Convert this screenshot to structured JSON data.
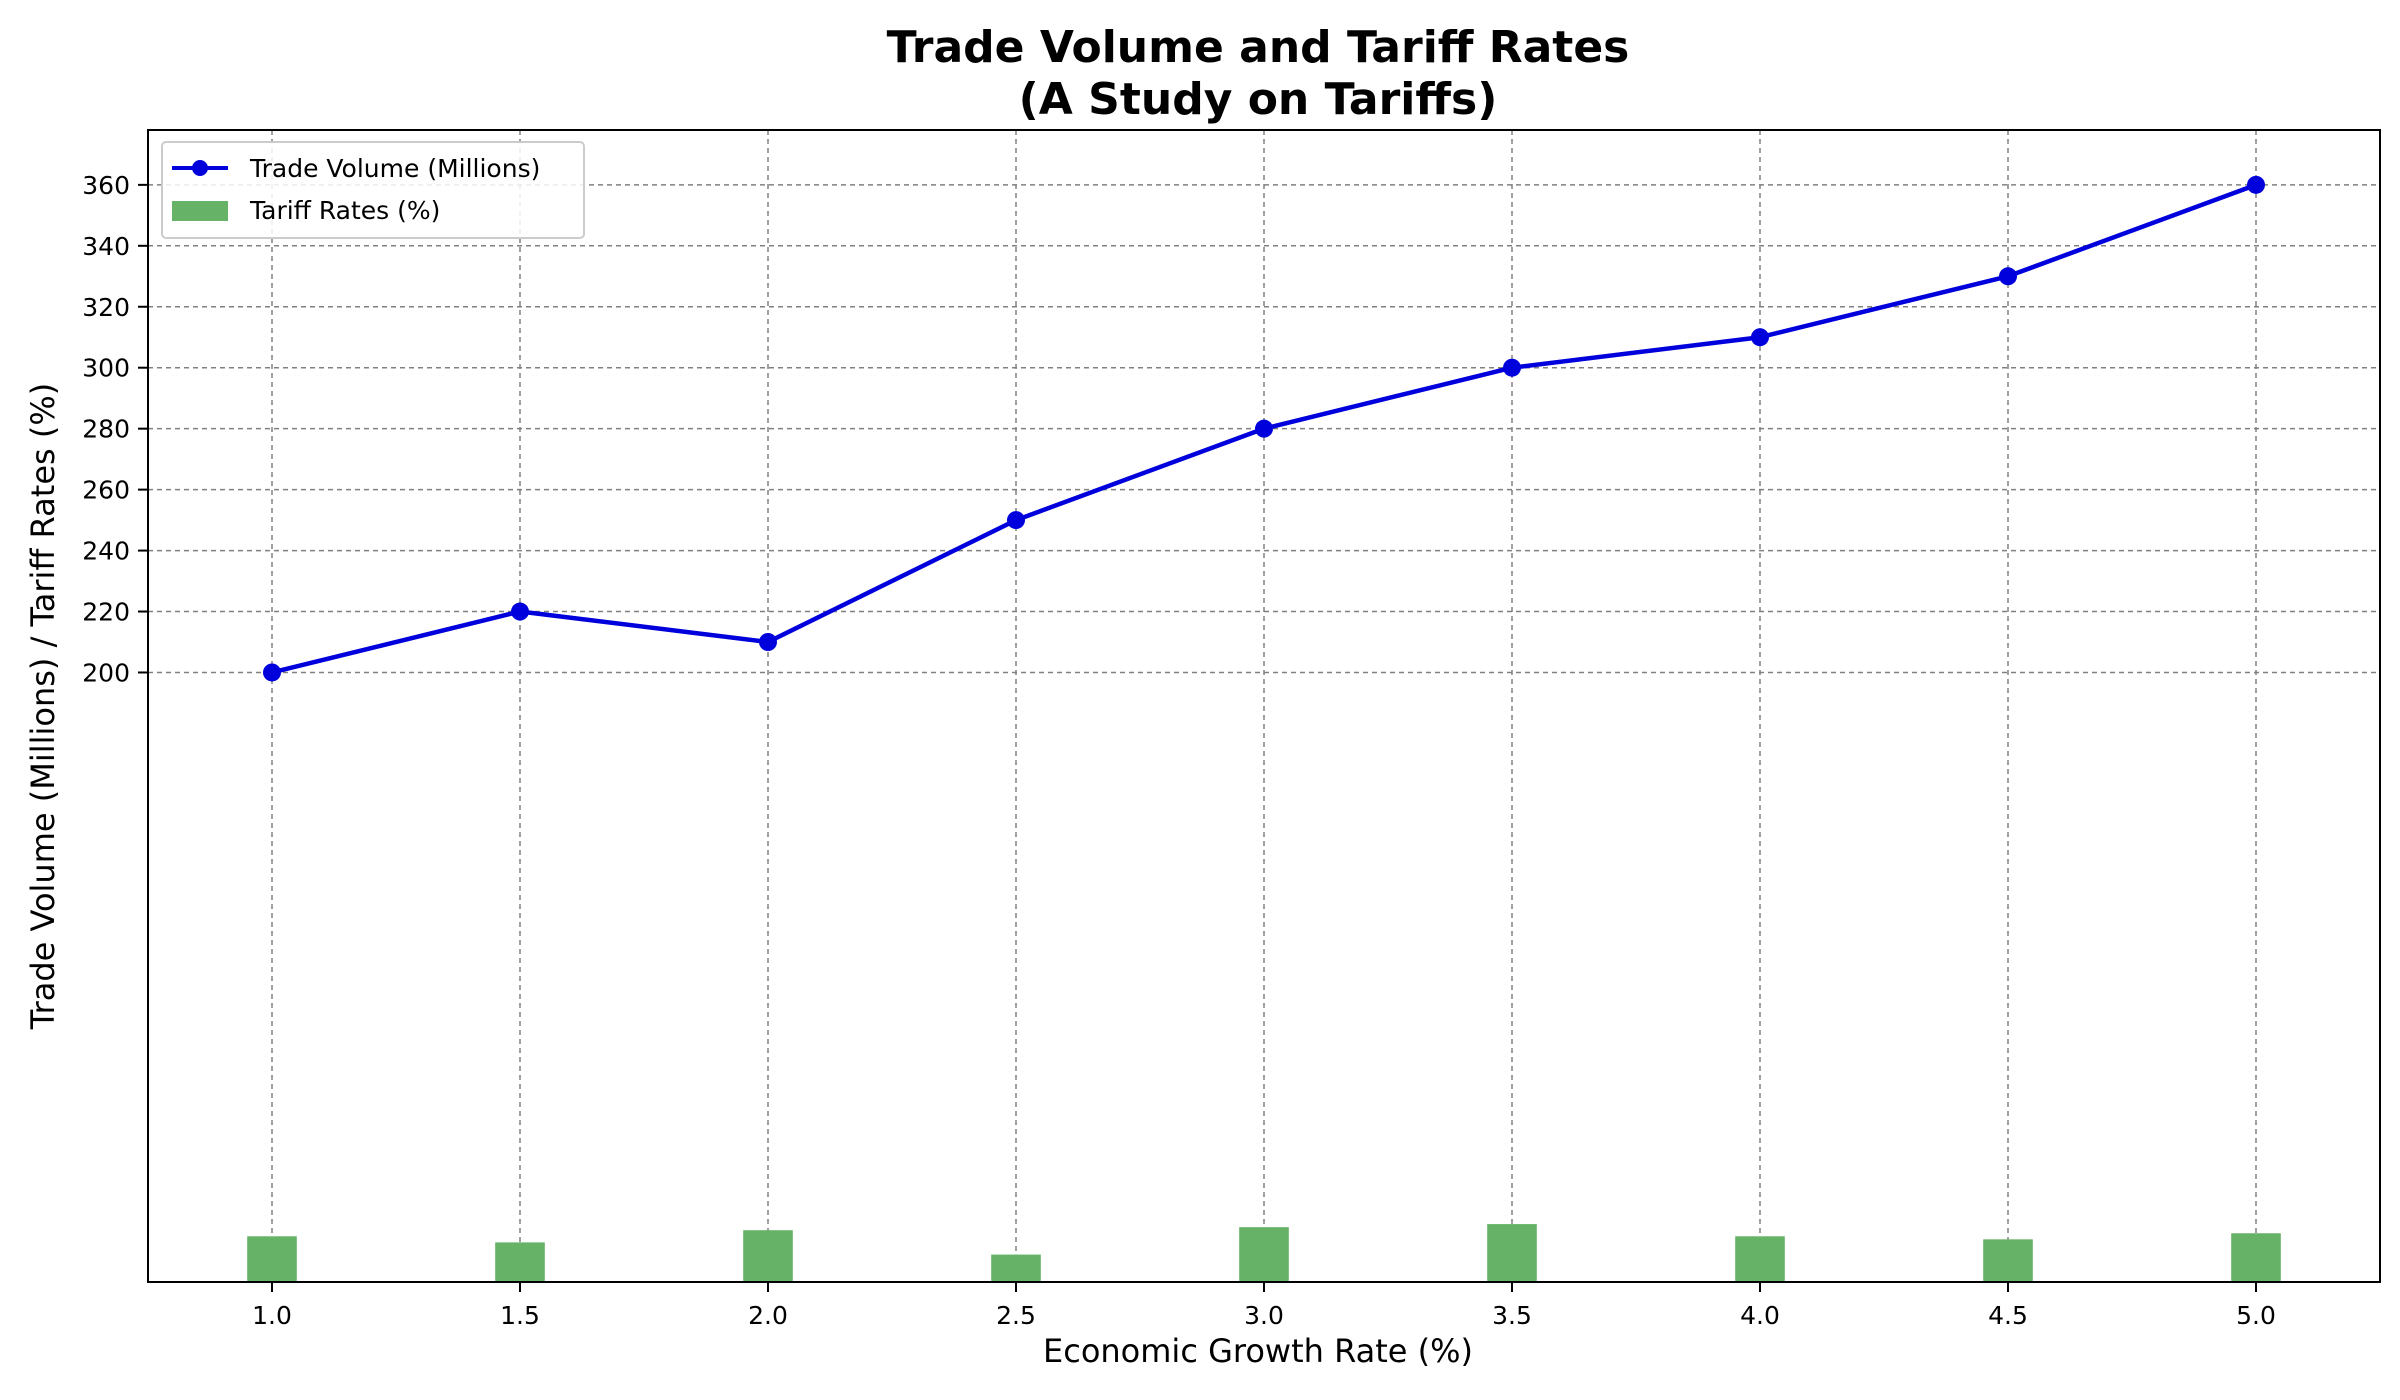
{
  "chart_data": {
    "type": "line",
    "title": "Trade Volume and Tariff Rates",
    "subtitle": "(A Study on Tariffs)",
    "xlabel": "Economic Growth Rate (%)",
    "ylabel": "Trade Volume (Millions) / Tariff Rates (%)",
    "x": [
      1.0,
      1.5,
      2.0,
      2.5,
      3.0,
      3.5,
      4.0,
      4.5,
      5.0
    ],
    "x_tick_labels": [
      "1.0",
      "1.5",
      "2.0",
      "2.5",
      "3.0",
      "3.5",
      "4.0",
      "4.5",
      "5.0"
    ],
    "xlim": [
      0.75,
      5.25
    ],
    "ylim": [
      0,
      378
    ],
    "y_ticks": [
      200,
      220,
      240,
      260,
      280,
      300,
      320,
      340,
      360
    ],
    "y_tick_labels": [
      "200",
      "220",
      "240",
      "260",
      "280",
      "300",
      "320",
      "340",
      "360"
    ],
    "grid": true,
    "legend": "upper left",
    "series": [
      {
        "name": "Trade Volume (Millions)",
        "type": "line",
        "marker": "circle",
        "color": "#0000dd",
        "values": [
          200,
          220,
          210,
          250,
          280,
          300,
          310,
          330,
          360
        ]
      },
      {
        "name": "Tariff Rates (%)",
        "type": "bar",
        "color": "#66b266",
        "bar_width": 0.1,
        "values": [
          15,
          13,
          17,
          9,
          18,
          19,
          15,
          14,
          16
        ]
      }
    ]
  }
}
